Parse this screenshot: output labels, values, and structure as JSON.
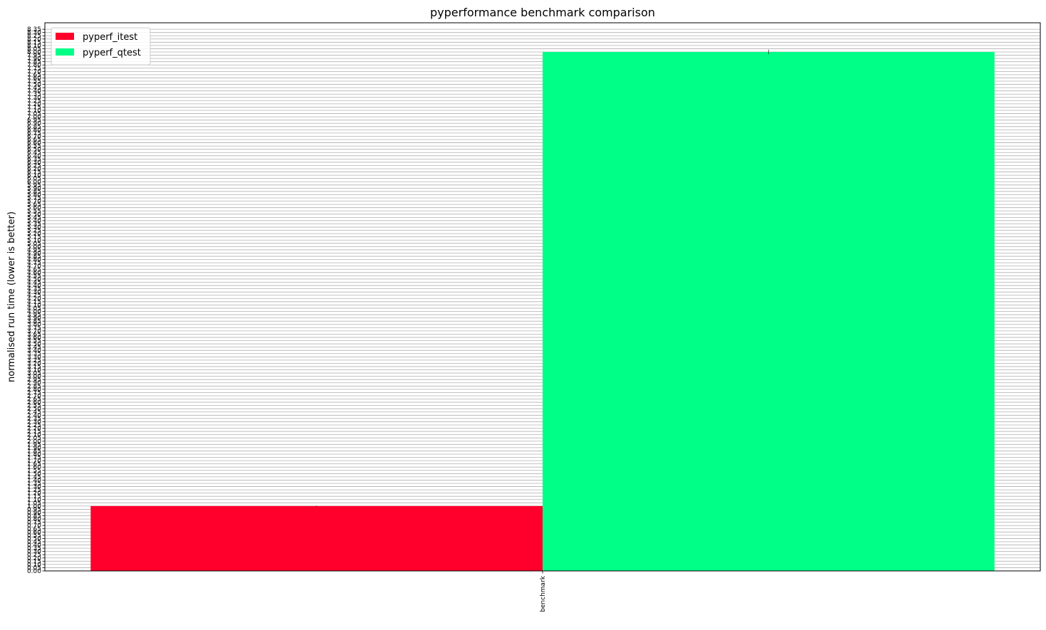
{
  "chart_data": {
    "type": "bar",
    "title": "pyperformance benchmark comparison",
    "xlabel": "",
    "ylabel": "normalised run time (lower is better)",
    "categories": [
      "benchmark"
    ],
    "series": [
      {
        "name": "pyperf_itest",
        "values": [
          1.0
        ],
        "error": [
          0.0
        ],
        "color": "#ff002c"
      },
      {
        "name": "pyperf_qtest",
        "values": [
          8.0
        ],
        "error": [
          0.03
        ],
        "color": "#00ff87"
      }
    ],
    "ylim": [
      0,
      8.45
    ],
    "ytick_step": 0.05,
    "ytick_max": 8.35,
    "grid": "y",
    "legend_position": "upper-left"
  }
}
